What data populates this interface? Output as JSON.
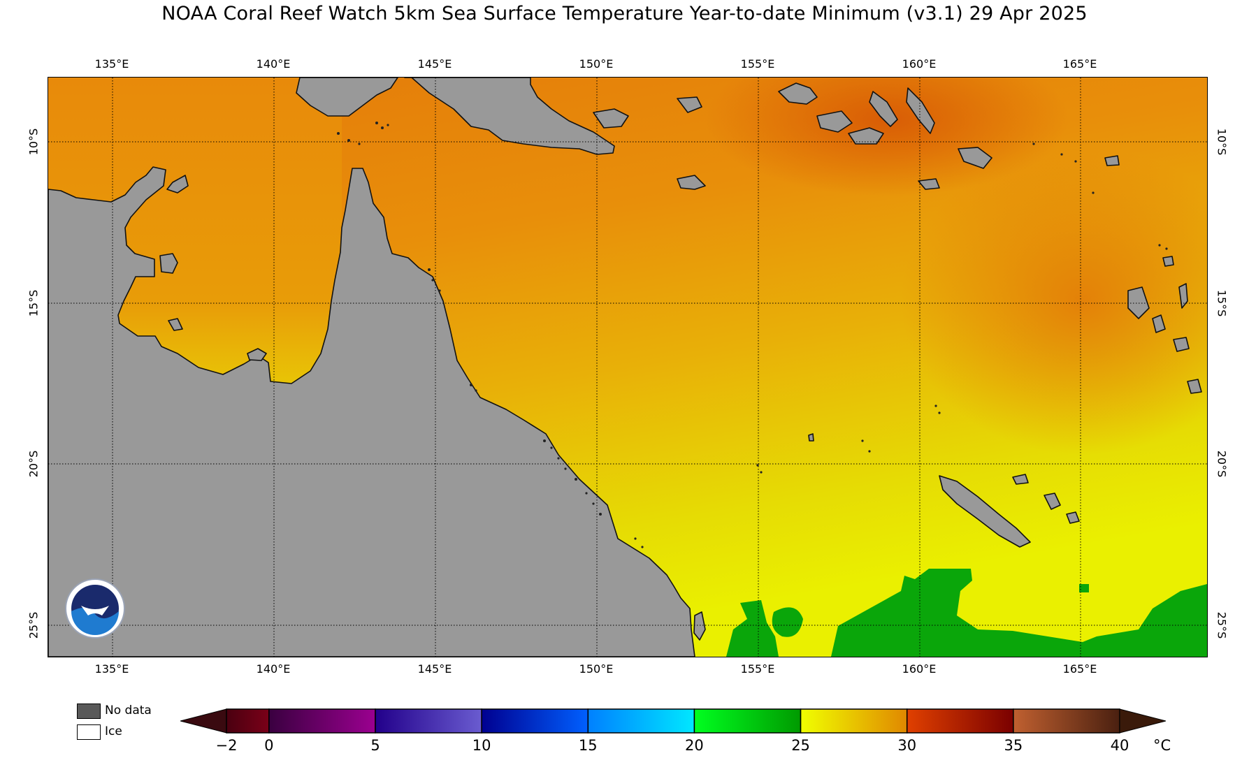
{
  "title": "NOAA Coral Reef Watch 5km Sea Surface Temperature Year-to-date Minimum  (v3.1)   29 Apr 2025",
  "map": {
    "lon_labels": [
      "135°E",
      "140°E",
      "145°E",
      "150°E",
      "155°E",
      "160°E",
      "165°E"
    ],
    "lat_labels": [
      "10°S",
      "15°S",
      "20°S",
      "25°S"
    ],
    "lon_range": [
      133.0,
      169.0
    ],
    "lat_range": [
      -7.8,
      -25.8
    ],
    "gridlines": true,
    "land_color": "#999999",
    "logo": "noaa-logo"
  },
  "legend": {
    "no_data_label": "No data",
    "no_data_color": "#595959",
    "ice_label": "Ice",
    "ice_color": "#ffffff"
  },
  "colorbar": {
    "unit": "°C",
    "ticks": [
      "−2",
      "0",
      "5",
      "10",
      "15",
      "20",
      "25",
      "30",
      "35",
      "40"
    ],
    "min": -2,
    "max": 40,
    "segments": [
      {
        "from": -2,
        "to": 0,
        "colors": [
          "#4a0010",
          "#7a0018"
        ]
      },
      {
        "from": 0,
        "to": 5,
        "colors": [
          "#3a0040",
          "#9b0090"
        ]
      },
      {
        "from": 5,
        "to": 10,
        "colors": [
          "#22008a",
          "#6a5cd0"
        ]
      },
      {
        "from": 10,
        "to": 15,
        "colors": [
          "#000090",
          "#0060ff"
        ]
      },
      {
        "from": 15,
        "to": 20,
        "colors": [
          "#0080ff",
          "#00e8ff"
        ]
      },
      {
        "from": 20,
        "to": 25,
        "colors": [
          "#00ff20",
          "#009a00"
        ]
      },
      {
        "from": 25,
        "to": 30,
        "colors": [
          "#f0ff00",
          "#e08800"
        ]
      },
      {
        "from": 30,
        "to": 35,
        "colors": [
          "#e04000",
          "#7a0000"
        ]
      },
      {
        "from": 35,
        "to": 40,
        "colors": [
          "#c06030",
          "#4a2010"
        ]
      }
    ],
    "under_color": "#3a0a10",
    "over_color": "#3a1a0a"
  }
}
